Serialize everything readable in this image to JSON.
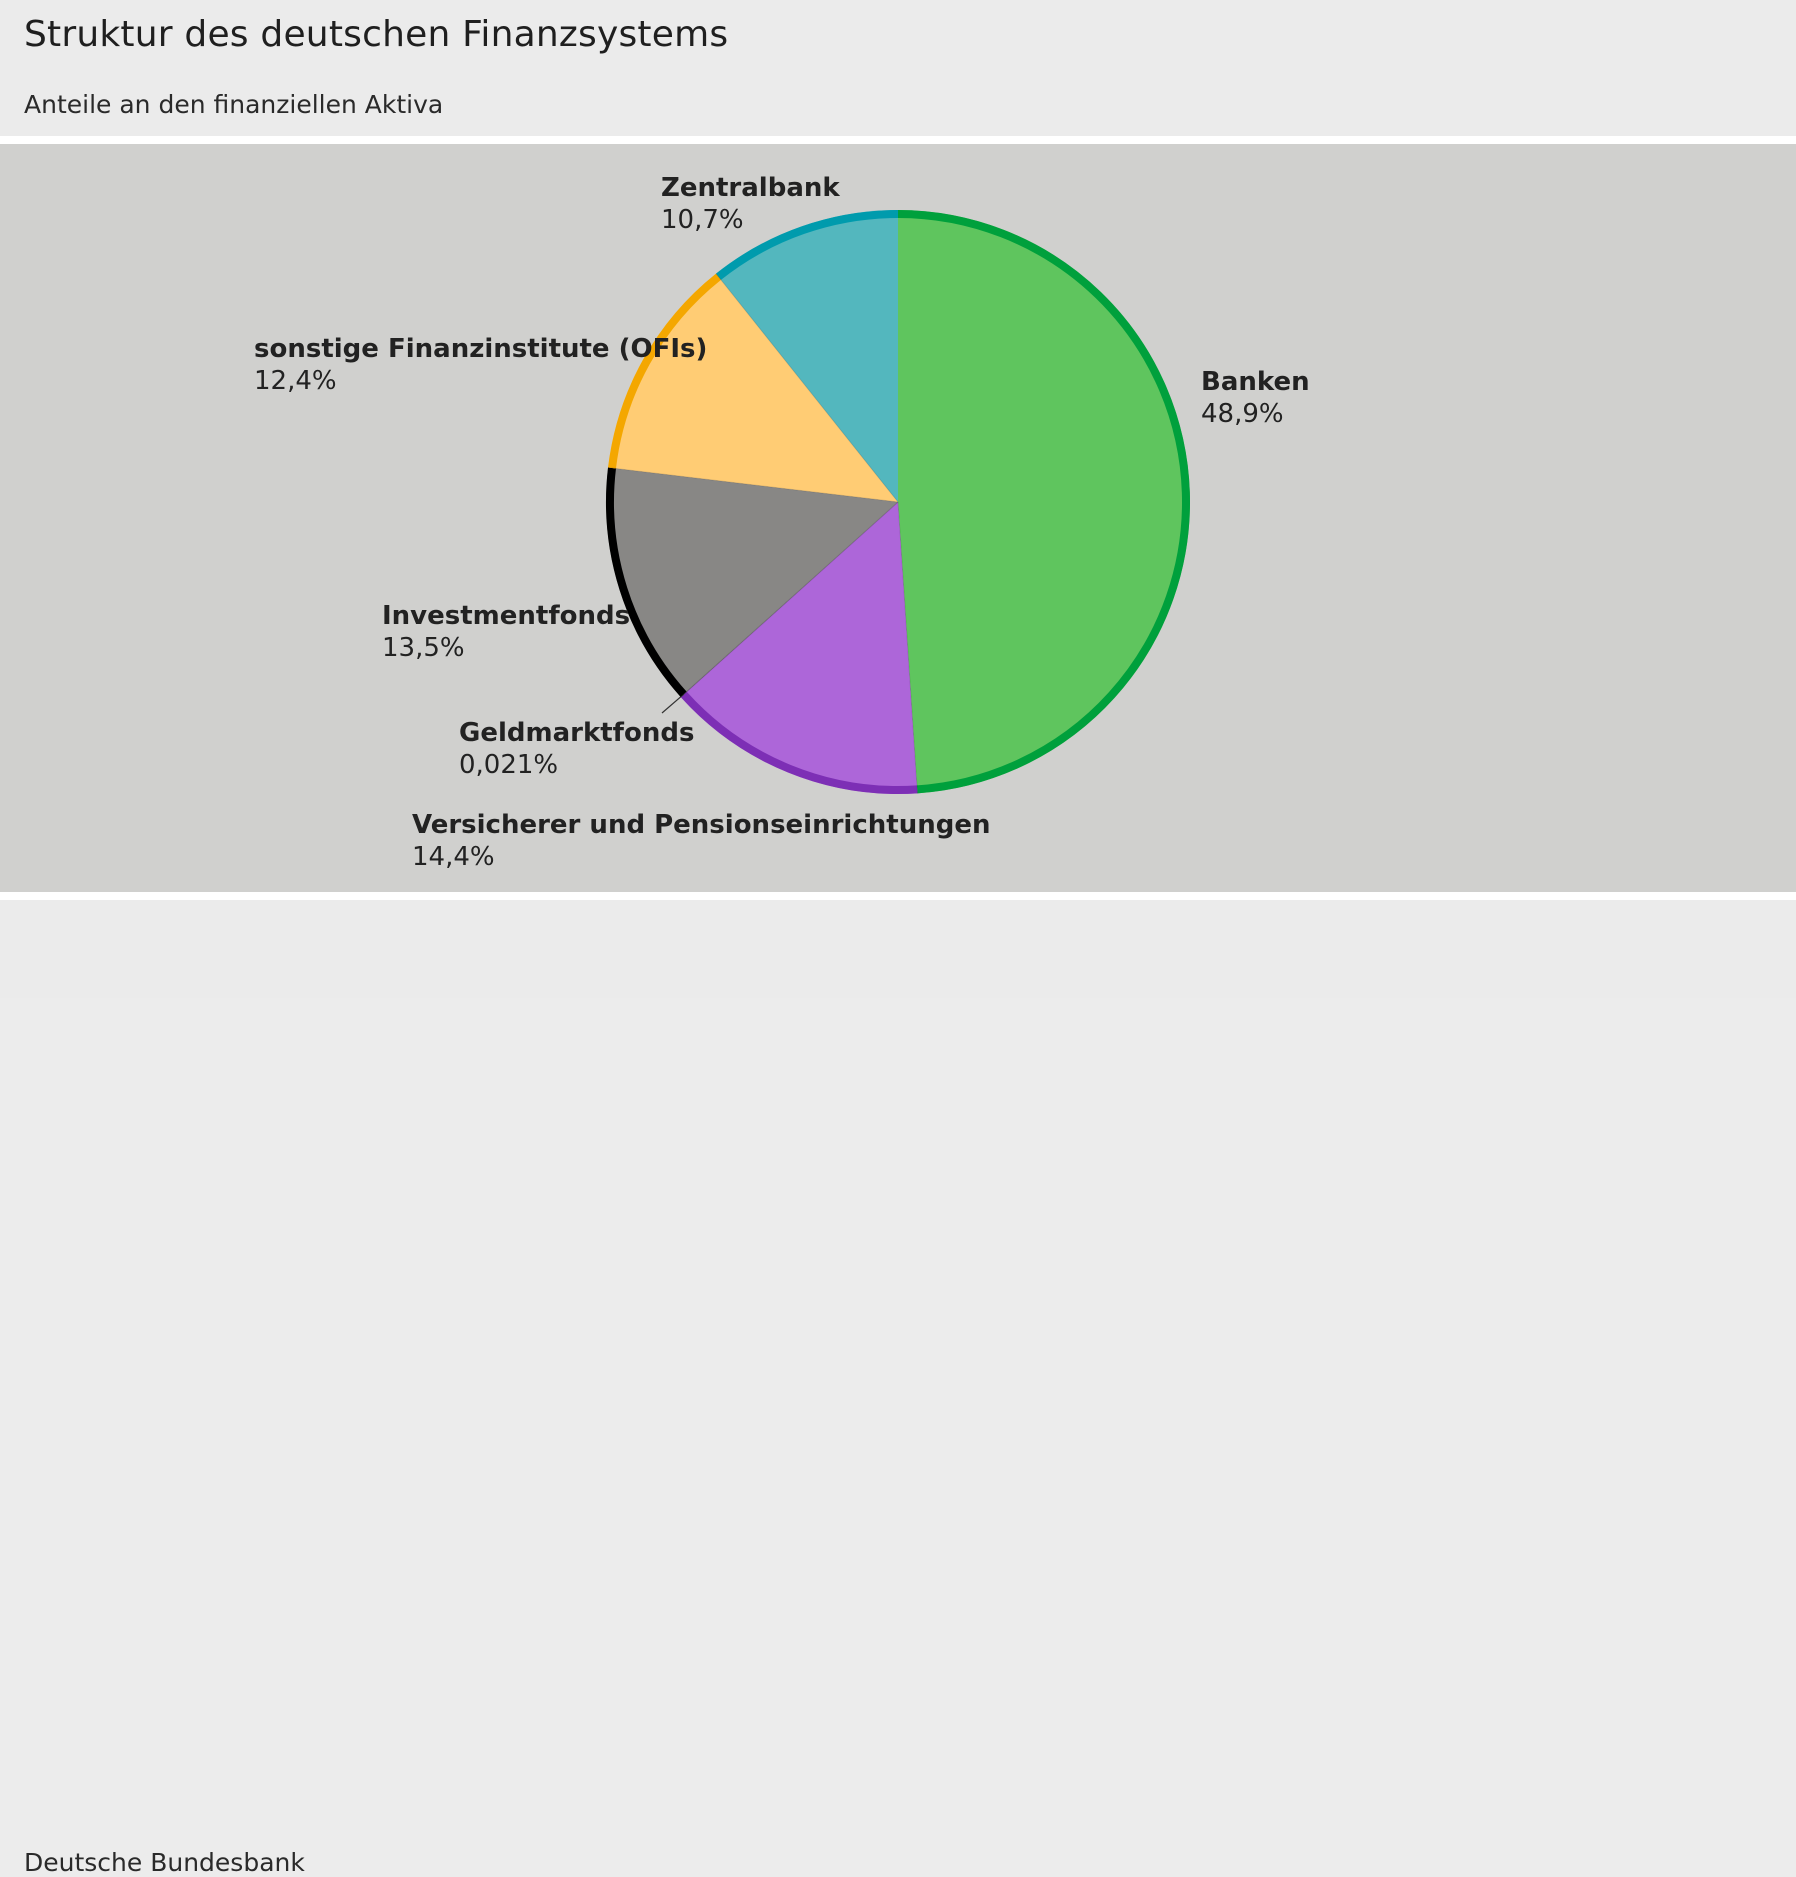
{
  "header": {
    "title": "Struktur des deutschen Finanzsystems",
    "subtitle": "Anteile an den finanziellen Aktiva"
  },
  "footer": {
    "source": "Deutsche Bundesbank"
  },
  "chart_data": {
    "type": "pie",
    "title": "Struktur des deutschen Finanzsystems",
    "subtitle": "Anteile an den finanziellen Aktiva",
    "unit": "%",
    "start": "12 o'clock",
    "direction": "clockwise",
    "slices": [
      {
        "name": "Banken",
        "value": 48.9,
        "label": "48,9%",
        "fill": "#5fc55e",
        "edge": "#00a03c"
      },
      {
        "name": "Versicherer und Pensionseinrichtungen",
        "value": 14.4,
        "label": "14,4%",
        "fill": "#ad66d9",
        "edge": "#7d2fb5"
      },
      {
        "name": "Geldmarktfonds",
        "value": 0.021,
        "label": "0,021%",
        "fill": "#555555",
        "edge": "#333333"
      },
      {
        "name": "Investmentfonds",
        "value": 13.5,
        "label": "13,5%",
        "fill": "#888785",
        "edge": "#000000"
      },
      {
        "name": "sonstige Finanzinstitute (OFIs)",
        "value": 12.4,
        "label": "12,4%",
        "fill": "#ffcc74",
        "edge": "#f4a700"
      },
      {
        "name": "Zentralbank",
        "value": 10.7,
        "label": "10,7%",
        "fill": "#53b7be",
        "edge": "#009bad"
      }
    ]
  }
}
